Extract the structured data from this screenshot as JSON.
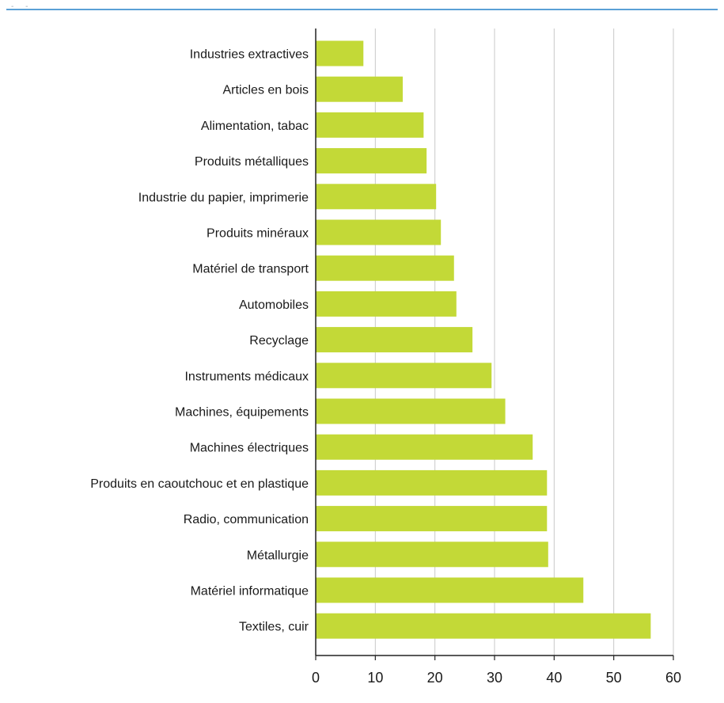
{
  "colors": {
    "bar": "#c3d937",
    "grid": "#c8c8c8",
    "axis": "#222222",
    "top_rule": "#5aa0d6"
  },
  "chart_data": {
    "type": "bar",
    "orientation": "horizontal",
    "categories": [
      "Industries extractives",
      "Articles en bois",
      "Alimentation, tabac",
      "Produits métalliques",
      "Industrie du papier, imprimerie",
      "Produits minéraux",
      "Matériel de transport",
      "Automobiles",
      "Recyclage",
      "Instruments médicaux",
      "Machines, équipements",
      "Machines électriques",
      "Produits en caoutchouc et en plastique",
      "Radio, communication",
      "Métallurgie",
      "Matériel informatique",
      "Textiles, cuir"
    ],
    "values": [
      8,
      14.6,
      18.1,
      18.6,
      20.2,
      21,
      23.2,
      23.6,
      26.3,
      29.5,
      31.8,
      36.4,
      38.8,
      38.8,
      39,
      44.9,
      56.2
    ],
    "xlim": [
      0,
      60
    ],
    "xticks": [
      "0",
      "10",
      "20",
      "30",
      "40",
      "50",
      "60"
    ],
    "grid": "vertical",
    "title": "",
    "xlabel": "",
    "ylabel": ""
  }
}
